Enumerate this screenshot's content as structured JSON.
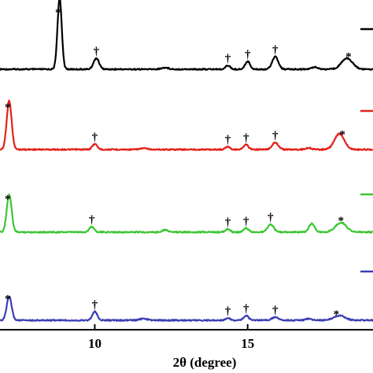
{
  "chart_data": {
    "type": "line",
    "xlabel": "2θ (degree)",
    "ylabel": "",
    "xlim": [
      6.9,
      19.1
    ],
    "x_ticks": [
      10,
      15
    ],
    "y_ticks": [],
    "grid": false,
    "legend": "right (partially cropped; only line swatches visible)",
    "marker_symbols": {
      "dagger": "†",
      "asterisk": "*"
    },
    "series": [
      {
        "color": "#000000",
        "baseline": 0,
        "peaks": [
          {
            "x": 8.85,
            "h": 90,
            "w": 0.07
          },
          {
            "x": 10.05,
            "h": 14,
            "w": 0.09
          },
          {
            "x": 12.3,
            "h": 2,
            "w": 0.12
          },
          {
            "x": 14.35,
            "h": 5,
            "w": 0.07
          },
          {
            "x": 15.0,
            "h": 10,
            "w": 0.08
          },
          {
            "x": 15.9,
            "h": 16,
            "w": 0.1
          },
          {
            "x": 17.2,
            "h": 3,
            "w": 0.1
          },
          {
            "x": 18.25,
            "h": 14,
            "w": 0.18
          }
        ],
        "markers": [
          {
            "x": 8.8,
            "symbol": "*"
          },
          {
            "x": 10.05,
            "symbol": "†"
          },
          {
            "x": 14.35,
            "symbol": "†"
          },
          {
            "x": 15.0,
            "symbol": "†"
          },
          {
            "x": 15.9,
            "symbol": "†"
          },
          {
            "x": 18.3,
            "symbol": "*"
          }
        ]
      },
      {
        "color": "#e32119",
        "baseline": 0,
        "peaks": [
          {
            "x": 7.2,
            "h": 62,
            "w": 0.08
          },
          {
            "x": 10.0,
            "h": 7,
            "w": 0.08
          },
          {
            "x": 11.6,
            "h": 1.5,
            "w": 0.12
          },
          {
            "x": 14.35,
            "h": 4,
            "w": 0.07
          },
          {
            "x": 14.95,
            "h": 6,
            "w": 0.08
          },
          {
            "x": 15.9,
            "h": 9,
            "w": 0.1
          },
          {
            "x": 17.0,
            "h": 2,
            "w": 0.1
          },
          {
            "x": 18.0,
            "h": 20,
            "w": 0.16
          }
        ],
        "markers": [
          {
            "x": 7.15,
            "symbol": "*"
          },
          {
            "x": 10.0,
            "symbol": "†"
          },
          {
            "x": 14.35,
            "symbol": "†"
          },
          {
            "x": 14.95,
            "symbol": "†"
          },
          {
            "x": 15.9,
            "symbol": "†"
          },
          {
            "x": 18.1,
            "symbol": "*"
          }
        ]
      },
      {
        "color": "#3cc633",
        "baseline": 0,
        "peaks": [
          {
            "x": 7.2,
            "h": 48,
            "w": 0.08
          },
          {
            "x": 9.9,
            "h": 7,
            "w": 0.08
          },
          {
            "x": 12.3,
            "h": 3,
            "w": 0.1
          },
          {
            "x": 14.35,
            "h": 4,
            "w": 0.07
          },
          {
            "x": 14.95,
            "h": 5,
            "w": 0.08
          },
          {
            "x": 15.75,
            "h": 10,
            "w": 0.1
          },
          {
            "x": 17.1,
            "h": 11,
            "w": 0.09
          },
          {
            "x": 18.05,
            "h": 12,
            "w": 0.18
          }
        ],
        "markers": [
          {
            "x": 7.15,
            "symbol": "*"
          },
          {
            "x": 9.9,
            "symbol": "†"
          },
          {
            "x": 14.35,
            "symbol": "†"
          },
          {
            "x": 14.95,
            "symbol": "†"
          },
          {
            "x": 15.75,
            "symbol": "†"
          },
          {
            "x": 18.05,
            "symbol": "*"
          }
        ]
      },
      {
        "color": "#3b3fb3",
        "baseline": 0,
        "peaks": [
          {
            "x": 7.2,
            "h": 30,
            "w": 0.08
          },
          {
            "x": 10.0,
            "h": 11,
            "w": 0.08
          },
          {
            "x": 11.6,
            "h": 2,
            "w": 0.12
          },
          {
            "x": 14.35,
            "h": 3,
            "w": 0.07
          },
          {
            "x": 14.95,
            "h": 6,
            "w": 0.08
          },
          {
            "x": 15.9,
            "h": 4,
            "w": 0.1
          },
          {
            "x": 17.0,
            "h": 2,
            "w": 0.1
          },
          {
            "x": 18.0,
            "h": 6,
            "w": 0.18
          }
        ],
        "markers": [
          {
            "x": 7.15,
            "symbol": "*"
          },
          {
            "x": 10.0,
            "symbol": "†"
          },
          {
            "x": 14.35,
            "symbol": "†"
          },
          {
            "x": 14.95,
            "symbol": "†"
          },
          {
            "x": 15.9,
            "symbol": "†"
          },
          {
            "x": 17.9,
            "symbol": "*"
          }
        ]
      }
    ]
  }
}
